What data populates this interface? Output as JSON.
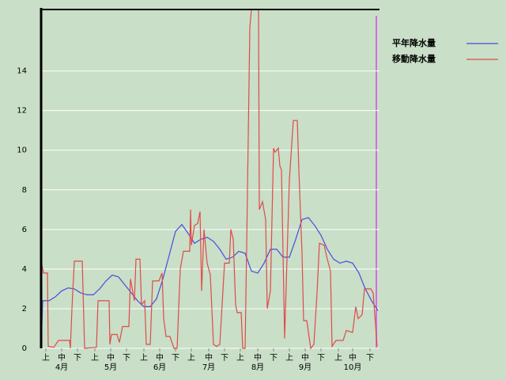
{
  "chart_data": {
    "type": "line",
    "xlim": [
      0,
      214
    ],
    "ylim": [
      0,
      17.1
    ],
    "yticks": [
      0,
      2,
      4,
      6,
      8,
      10,
      12,
      14
    ],
    "xticks": [
      {
        "value": 3,
        "label": "上"
      },
      {
        "value": 13,
        "label": "中"
      },
      {
        "value": 23,
        "label": "下"
      },
      {
        "value": 34,
        "label": "上"
      },
      {
        "value": 44,
        "label": "中"
      },
      {
        "value": 54,
        "label": "下"
      },
      {
        "value": 65,
        "label": "上"
      },
      {
        "value": 75,
        "label": "中"
      },
      {
        "value": 85,
        "label": "下"
      },
      {
        "value": 95,
        "label": "上"
      },
      {
        "value": 106,
        "label": "中"
      },
      {
        "value": 116,
        "label": "下"
      },
      {
        "value": 126,
        "label": "上"
      },
      {
        "value": 137,
        "label": "中"
      },
      {
        "value": 147,
        "label": "下"
      },
      {
        "value": 157,
        "label": "上"
      },
      {
        "value": 167,
        "label": "中"
      },
      {
        "value": 177,
        "label": "下"
      },
      {
        "value": 188,
        "label": "上"
      },
      {
        "value": 197,
        "label": "中"
      },
      {
        "value": 208,
        "label": "下"
      }
    ],
    "month_labels": [
      {
        "value": 13,
        "label": "4月"
      },
      {
        "value": 44,
        "label": "5月"
      },
      {
        "value": 75,
        "label": "6月"
      },
      {
        "value": 106,
        "label": "7月"
      },
      {
        "value": 137,
        "label": "8月"
      },
      {
        "value": 167,
        "label": "9月"
      },
      {
        "value": 197,
        "label": "10月"
      }
    ],
    "grid": true,
    "legend": "top-right",
    "series": [
      {
        "name": "平年降水量",
        "color": "#4a4ae0",
        "x": [
          0,
          1,
          5,
          9,
          13,
          17,
          21,
          25,
          29,
          33,
          37,
          41,
          45,
          49,
          53,
          57,
          61,
          65,
          69,
          73,
          77,
          81,
          85,
          89,
          93,
          97,
          101,
          105,
          109,
          113,
          117,
          121,
          125,
          129,
          133,
          137,
          141,
          145,
          149,
          153,
          157,
          161,
          165,
          169,
          173,
          177,
          181,
          185,
          189,
          193,
          197,
          201,
          205,
          209,
          213
        ],
        "values": [
          0,
          2.4,
          2.4,
          2.6,
          2.9,
          3.05,
          3.0,
          2.8,
          2.7,
          2.7,
          3.0,
          3.4,
          3.7,
          3.6,
          3.2,
          2.8,
          2.4,
          2.1,
          2.1,
          2.5,
          3.5,
          4.7,
          5.9,
          6.25,
          5.8,
          5.3,
          5.5,
          5.6,
          5.4,
          5.0,
          4.5,
          4.6,
          4.9,
          4.8,
          3.9,
          3.8,
          4.3,
          5.0,
          5.0,
          4.6,
          4.6,
          5.5,
          6.5,
          6.6,
          6.2,
          5.7,
          5.0,
          4.5,
          4.3,
          4.4,
          4.3,
          3.8,
          3.0,
          2.4,
          1.9
        ]
      },
      {
        "name": "移動降水量",
        "color": "#e04a4a",
        "x": [
          0,
          0.5,
          1.5,
          4,
          4.5,
          8,
          11,
          18,
          18.5,
          19.5,
          21,
          26,
          27.5,
          35,
          36,
          43,
          43.5,
          44.5,
          48,
          49.5,
          51.5,
          55.5,
          56.5,
          59,
          60,
          62.5,
          63.5,
          65.5,
          66.5,
          69,
          70.5,
          74.5,
          76.5,
          77.5,
          79,
          81.5,
          84,
          86,
          88,
          90,
          94,
          94.5,
          95,
          97,
          99,
          100.5,
          101.5,
          103,
          105,
          107,
          109,
          111,
          113,
          116,
          119,
          120,
          121.5,
          123,
          124,
          126.5,
          127.5,
          129,
          130,
          132,
          133,
          137.5,
          138,
          140,
          142,
          143,
          145,
          147,
          148,
          150,
          151,
          152,
          154,
          157,
          159.5,
          162,
          163,
          165,
          166,
          168,
          170.5,
          172.5,
          174.5,
          176,
          179,
          181,
          183,
          184,
          186.5,
          191,
          193,
          197,
          199,
          200.5,
          203,
          204.5,
          208.5,
          210,
          212.5
        ],
        "values": [
          0,
          4.2,
          3.8,
          3.8,
          0.1,
          0.05,
          0.4,
          0.4,
          0,
          2.0,
          4.4,
          4.4,
          0,
          0.05,
          2.4,
          2.4,
          0.2,
          0.7,
          0.7,
          0.3,
          1.1,
          1.1,
          3.5,
          2.4,
          4.5,
          4.5,
          2.2,
          2.4,
          0.2,
          0.2,
          3.4,
          3.4,
          3.8,
          1.5,
          0.6,
          0.6,
          0,
          0,
          4.0,
          4.9,
          4.9,
          7.0,
          5.2,
          6.2,
          6.3,
          6.9,
          2.9,
          6.0,
          4.3,
          3.7,
          0.2,
          0.1,
          0.2,
          4.3,
          4.3,
          6.0,
          5.5,
          2.2,
          1.8,
          1.8,
          0,
          0,
          5.2,
          16.2,
          17.1,
          17.1,
          7.0,
          7.4,
          6.5,
          2.0,
          2.9,
          10.1,
          9.9,
          10.1,
          9.2,
          9.0,
          0.5,
          8.5,
          11.5,
          11.5,
          9.0,
          4.8,
          1.4,
          1.4,
          0,
          0.2,
          2.8,
          5.3,
          5.2,
          4.5,
          3.9,
          0.1,
          0.4,
          0.4,
          0.9,
          0.8,
          2.1,
          1.5,
          1.7,
          3.0,
          3.0,
          2.8,
          0.1
        ]
      }
    ]
  }
}
